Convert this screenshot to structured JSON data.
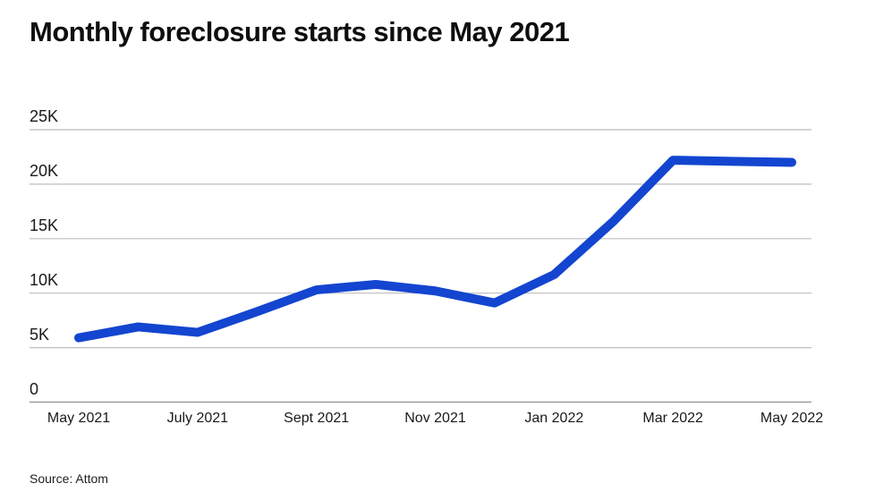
{
  "title": "Monthly foreclosure starts since May 2021",
  "source": "Source: Attom",
  "colors": {
    "line": "#1345d0",
    "grid": "#bdbdbd",
    "zero_axis": "#9e9e9e",
    "text": "#1a1a1a"
  },
  "chart_data": {
    "type": "line",
    "title": "Monthly foreclosure starts since May 2021",
    "x": [
      "May 2021",
      "Jun 2021",
      "Jul 2021",
      "Aug 2021",
      "Sep 2021",
      "Oct 2021",
      "Nov 2021",
      "Dec 2021",
      "Jan 2022",
      "Feb 2022",
      "Mar 2022",
      "Apr 2022",
      "May 2022"
    ],
    "values": [
      5900,
      6900,
      6400,
      8300,
      10300,
      10800,
      10200,
      9100,
      11700,
      16600,
      22200,
      22100,
      22000
    ],
    "x_tick_labels": [
      "May 2021",
      "July 2021",
      "Sept 2021",
      "Nov 2021",
      "Jan 2022",
      "Mar 2022",
      "May 2022"
    ],
    "x_tick_every": 2,
    "y_ticks": [
      0,
      5000,
      10000,
      15000,
      20000,
      25000
    ],
    "y_tick_labels": [
      "0",
      "5K",
      "10K",
      "15K",
      "20K",
      "25K"
    ],
    "ylim": [
      0,
      25000
    ],
    "grid": true,
    "legend": "none",
    "xlabel": "",
    "ylabel": ""
  }
}
